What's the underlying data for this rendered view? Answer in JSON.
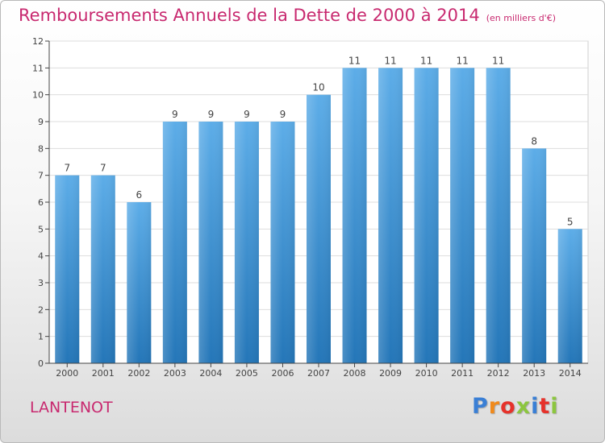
{
  "header": {
    "title": "Remboursements Annuels de la Dette de 2000 à 2014",
    "subtitle": "(en milliers d'€)"
  },
  "footer": {
    "commune": "LANTENOT",
    "logo_text": "Proxiti",
    "logo_colors": [
      "#3a7fd5",
      "#f08a1c",
      "#e6322b",
      "#8cc63f",
      "#3a7fd5",
      "#e6322b",
      "#8cc63f"
    ]
  },
  "colors": {
    "bar_top": "#5dade8",
    "bar_bottom": "#2476b8",
    "title": "#c8296f",
    "axis": "#444444",
    "grid": "#dddddd"
  },
  "chart_data": {
    "type": "bar",
    "categories": [
      "2000",
      "2001",
      "2002",
      "2003",
      "2004",
      "2005",
      "2006",
      "2007",
      "2008",
      "2009",
      "2010",
      "2011",
      "2012",
      "2013",
      "2014"
    ],
    "values": [
      7,
      7,
      6,
      9,
      9,
      9,
      9,
      10,
      11,
      11,
      11,
      11,
      11,
      8,
      5
    ],
    "data_labels": [
      "7",
      "7",
      "6",
      "9",
      "9",
      "9",
      "9",
      "10",
      "11",
      "11",
      "11",
      "11",
      "11",
      "8",
      "5"
    ],
    "y_ticks": [
      "0",
      "1",
      "2",
      "3",
      "4",
      "5",
      "6",
      "7",
      "8",
      "9",
      "10",
      "11",
      "12"
    ],
    "ylim": [
      0,
      12
    ],
    "title": "Remboursements Annuels de la Dette de 2000 à 2014",
    "xlabel": "",
    "ylabel": "",
    "grid": true,
    "legend": "none"
  }
}
